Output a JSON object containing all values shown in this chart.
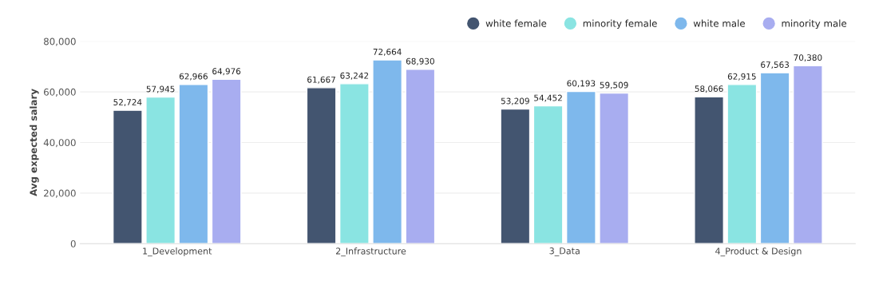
{
  "chart_data": {
    "type": "bar",
    "ylabel": "Avg expected salary",
    "categories": [
      "1_Development",
      "2_Infrastructure",
      "3_Data",
      "4_Product & Design"
    ],
    "series": [
      {
        "name": "white female",
        "color": "#435570",
        "values": [
          52724,
          61667,
          53209,
          58066
        ],
        "value_labels": [
          "52,724",
          "61,667",
          "53,209",
          "58,066"
        ]
      },
      {
        "name": "minority female",
        "color": "#8ae4e2",
        "values": [
          57945,
          63242,
          54452,
          62915
        ],
        "value_labels": [
          "57,945",
          "63,242",
          "54,452",
          "62,915"
        ]
      },
      {
        "name": "white male",
        "color": "#7eb8ec",
        "values": [
          62966,
          72664,
          60193,
          67563
        ],
        "value_labels": [
          "62,966",
          "72,664",
          "60,193",
          "67,563"
        ]
      },
      {
        "name": "minority male",
        "color": "#a8adf0",
        "values": [
          64976,
          68930,
          59509,
          70380
        ],
        "value_labels": [
          "64,976",
          "68,930",
          "59,509",
          "70,380"
        ]
      }
    ],
    "ylim": [
      0,
      80000
    ],
    "yticks": [
      {
        "value": 0,
        "label": "0"
      },
      {
        "value": 20000,
        "label": "20,000"
      },
      {
        "value": 40000,
        "label": "40,000"
      },
      {
        "value": 60000,
        "label": "60,000"
      },
      {
        "value": 80000,
        "label": "80,000"
      }
    ],
    "grid": "y",
    "legend": "top right"
  }
}
